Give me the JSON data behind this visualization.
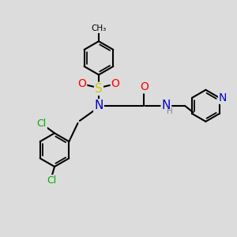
{
  "bg_color": "#dcdcdc",
  "bond_color": "#000000",
  "bond_width": 1.5,
  "atom_colors": {
    "S": "#cccc00",
    "O": "#ff0000",
    "N": "#0000cc",
    "Cl": "#00aa00",
    "H": "#888888"
  },
  "scale": 1.0,
  "fig_w": 3.0,
  "fig_h": 3.0,
  "dpi": 100
}
